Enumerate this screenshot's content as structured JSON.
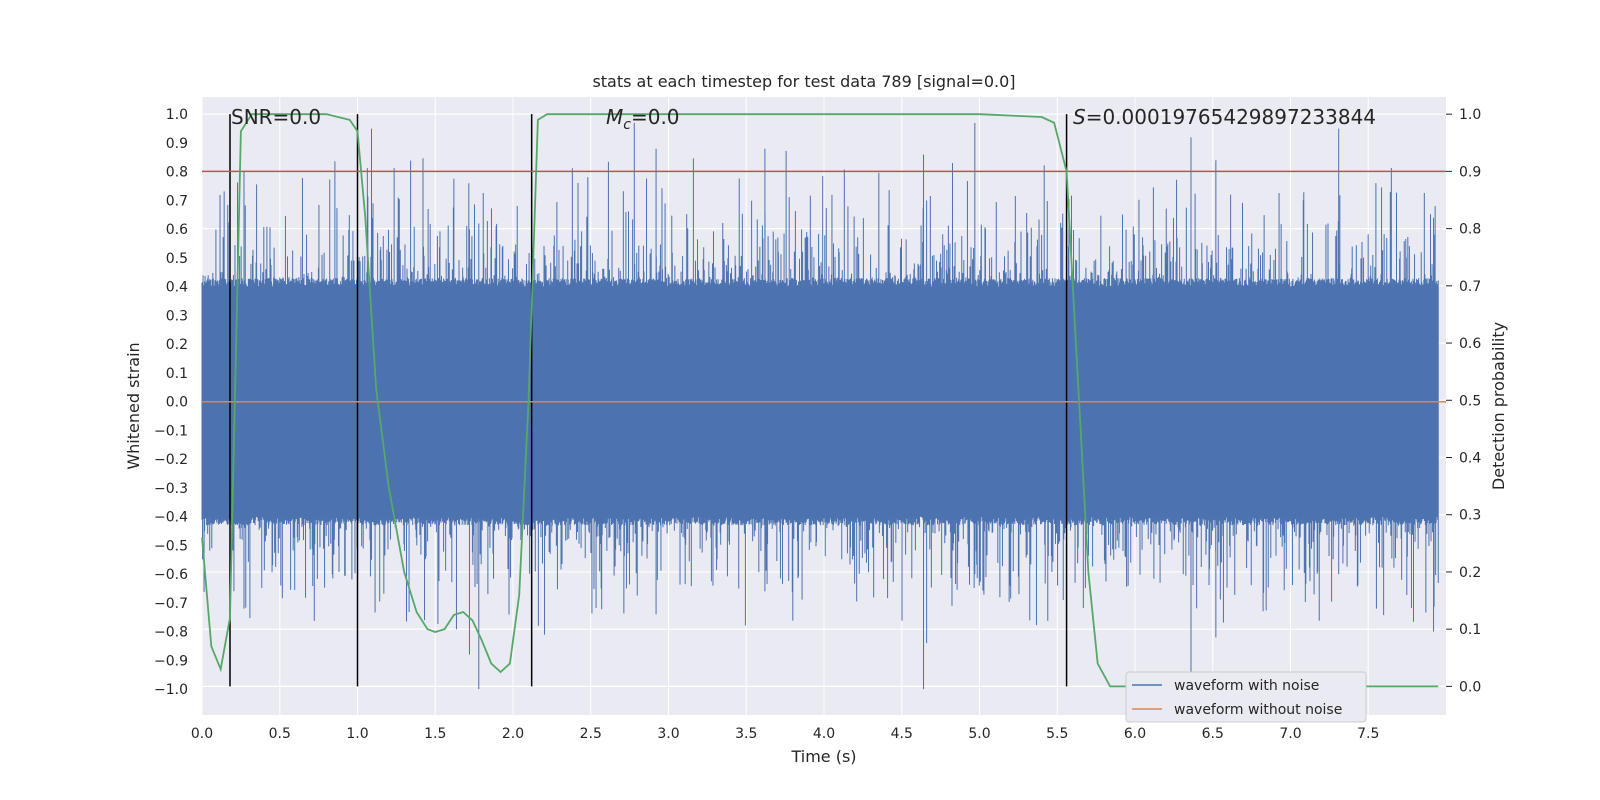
{
  "chart_data": {
    "type": "line",
    "title": "stats at each timestep for test data 789 [signal=0.0]",
    "xlabel": "Time (s)",
    "ylabel_left": "Whitened strain",
    "ylabel_right": "Detection probability",
    "xlim": [
      0.0,
      8.0
    ],
    "ylim_left": [
      -1.09,
      1.06
    ],
    "ylim_right": [
      -0.05,
      1.03
    ],
    "x_ticks": [
      "0.0",
      "0.5",
      "1.0",
      "1.5",
      "2.0",
      "2.5",
      "3.0",
      "3.5",
      "4.0",
      "4.5",
      "5.0",
      "5.5",
      "6.0",
      "6.5",
      "7.0",
      "7.5"
    ],
    "y_left_ticks": [
      "1.0",
      "0.9",
      "0.8",
      "0.7",
      "0.6",
      "0.5",
      "0.4",
      "0.3",
      "0.2",
      "0.1",
      "0.0",
      "-0.1",
      "-0.2",
      "-0.3",
      "-0.4",
      "-0.5",
      "-0.6",
      "-0.7",
      "-0.8",
      "-0.9",
      "-1.0"
    ],
    "y_right_ticks": [
      "1.0",
      "0.9",
      "0.8",
      "0.7",
      "0.6",
      "0.5",
      "0.4",
      "0.3",
      "0.2",
      "0.1",
      "0.0"
    ],
    "grid": true,
    "legend_position": "lower-right",
    "annotations": {
      "snr": "SNR=0.0",
      "mc_symbol": "M",
      "mc_sub": "c",
      "mc_value": "=0.0",
      "s_symbol": "S",
      "s_value": "=0.00019765429897233844"
    },
    "series": [
      {
        "name": "waveform with noise",
        "color": "#4c72b0",
        "description": "noise band approx -0.40 to 0.40 with spikes to about ±1.0"
      },
      {
        "name": "waveform without noise",
        "color": "#dd8452",
        "values": [
          0.0
        ]
      }
    ],
    "probability_series": {
      "color": "#55a868",
      "x": [
        0.0,
        0.06,
        0.12,
        0.18,
        0.25,
        0.32,
        0.4,
        0.6,
        0.8,
        0.95,
        1.0,
        1.05,
        1.12,
        1.2,
        1.3,
        1.38,
        1.45,
        1.5,
        1.56,
        1.62,
        1.68,
        1.74,
        1.8,
        1.86,
        1.92,
        1.98,
        2.04,
        2.1,
        2.16,
        2.22,
        2.35,
        3.0,
        4.0,
        5.0,
        5.4,
        5.48,
        5.56,
        5.62,
        5.7,
        5.76,
        5.84,
        6.0,
        7.0,
        7.95
      ],
      "values": [
        0.26,
        0.07,
        0.03,
        0.12,
        0.97,
        1.0,
        1.0,
        1.0,
        1.0,
        0.99,
        0.97,
        0.82,
        0.52,
        0.35,
        0.2,
        0.13,
        0.1,
        0.095,
        0.1,
        0.125,
        0.13,
        0.115,
        0.08,
        0.04,
        0.025,
        0.04,
        0.16,
        0.5,
        0.99,
        1.0,
        1.0,
        1.0,
        1.0,
        1.0,
        0.995,
        0.985,
        0.9,
        0.6,
        0.2,
        0.04,
        0.0,
        0.0,
        0.0,
        0.0
      ]
    },
    "threshold_line": {
      "value": 0.9,
      "color": "#c44e52"
    },
    "vertical_markers": [
      0.18,
      1.0,
      2.12,
      5.56
    ]
  }
}
